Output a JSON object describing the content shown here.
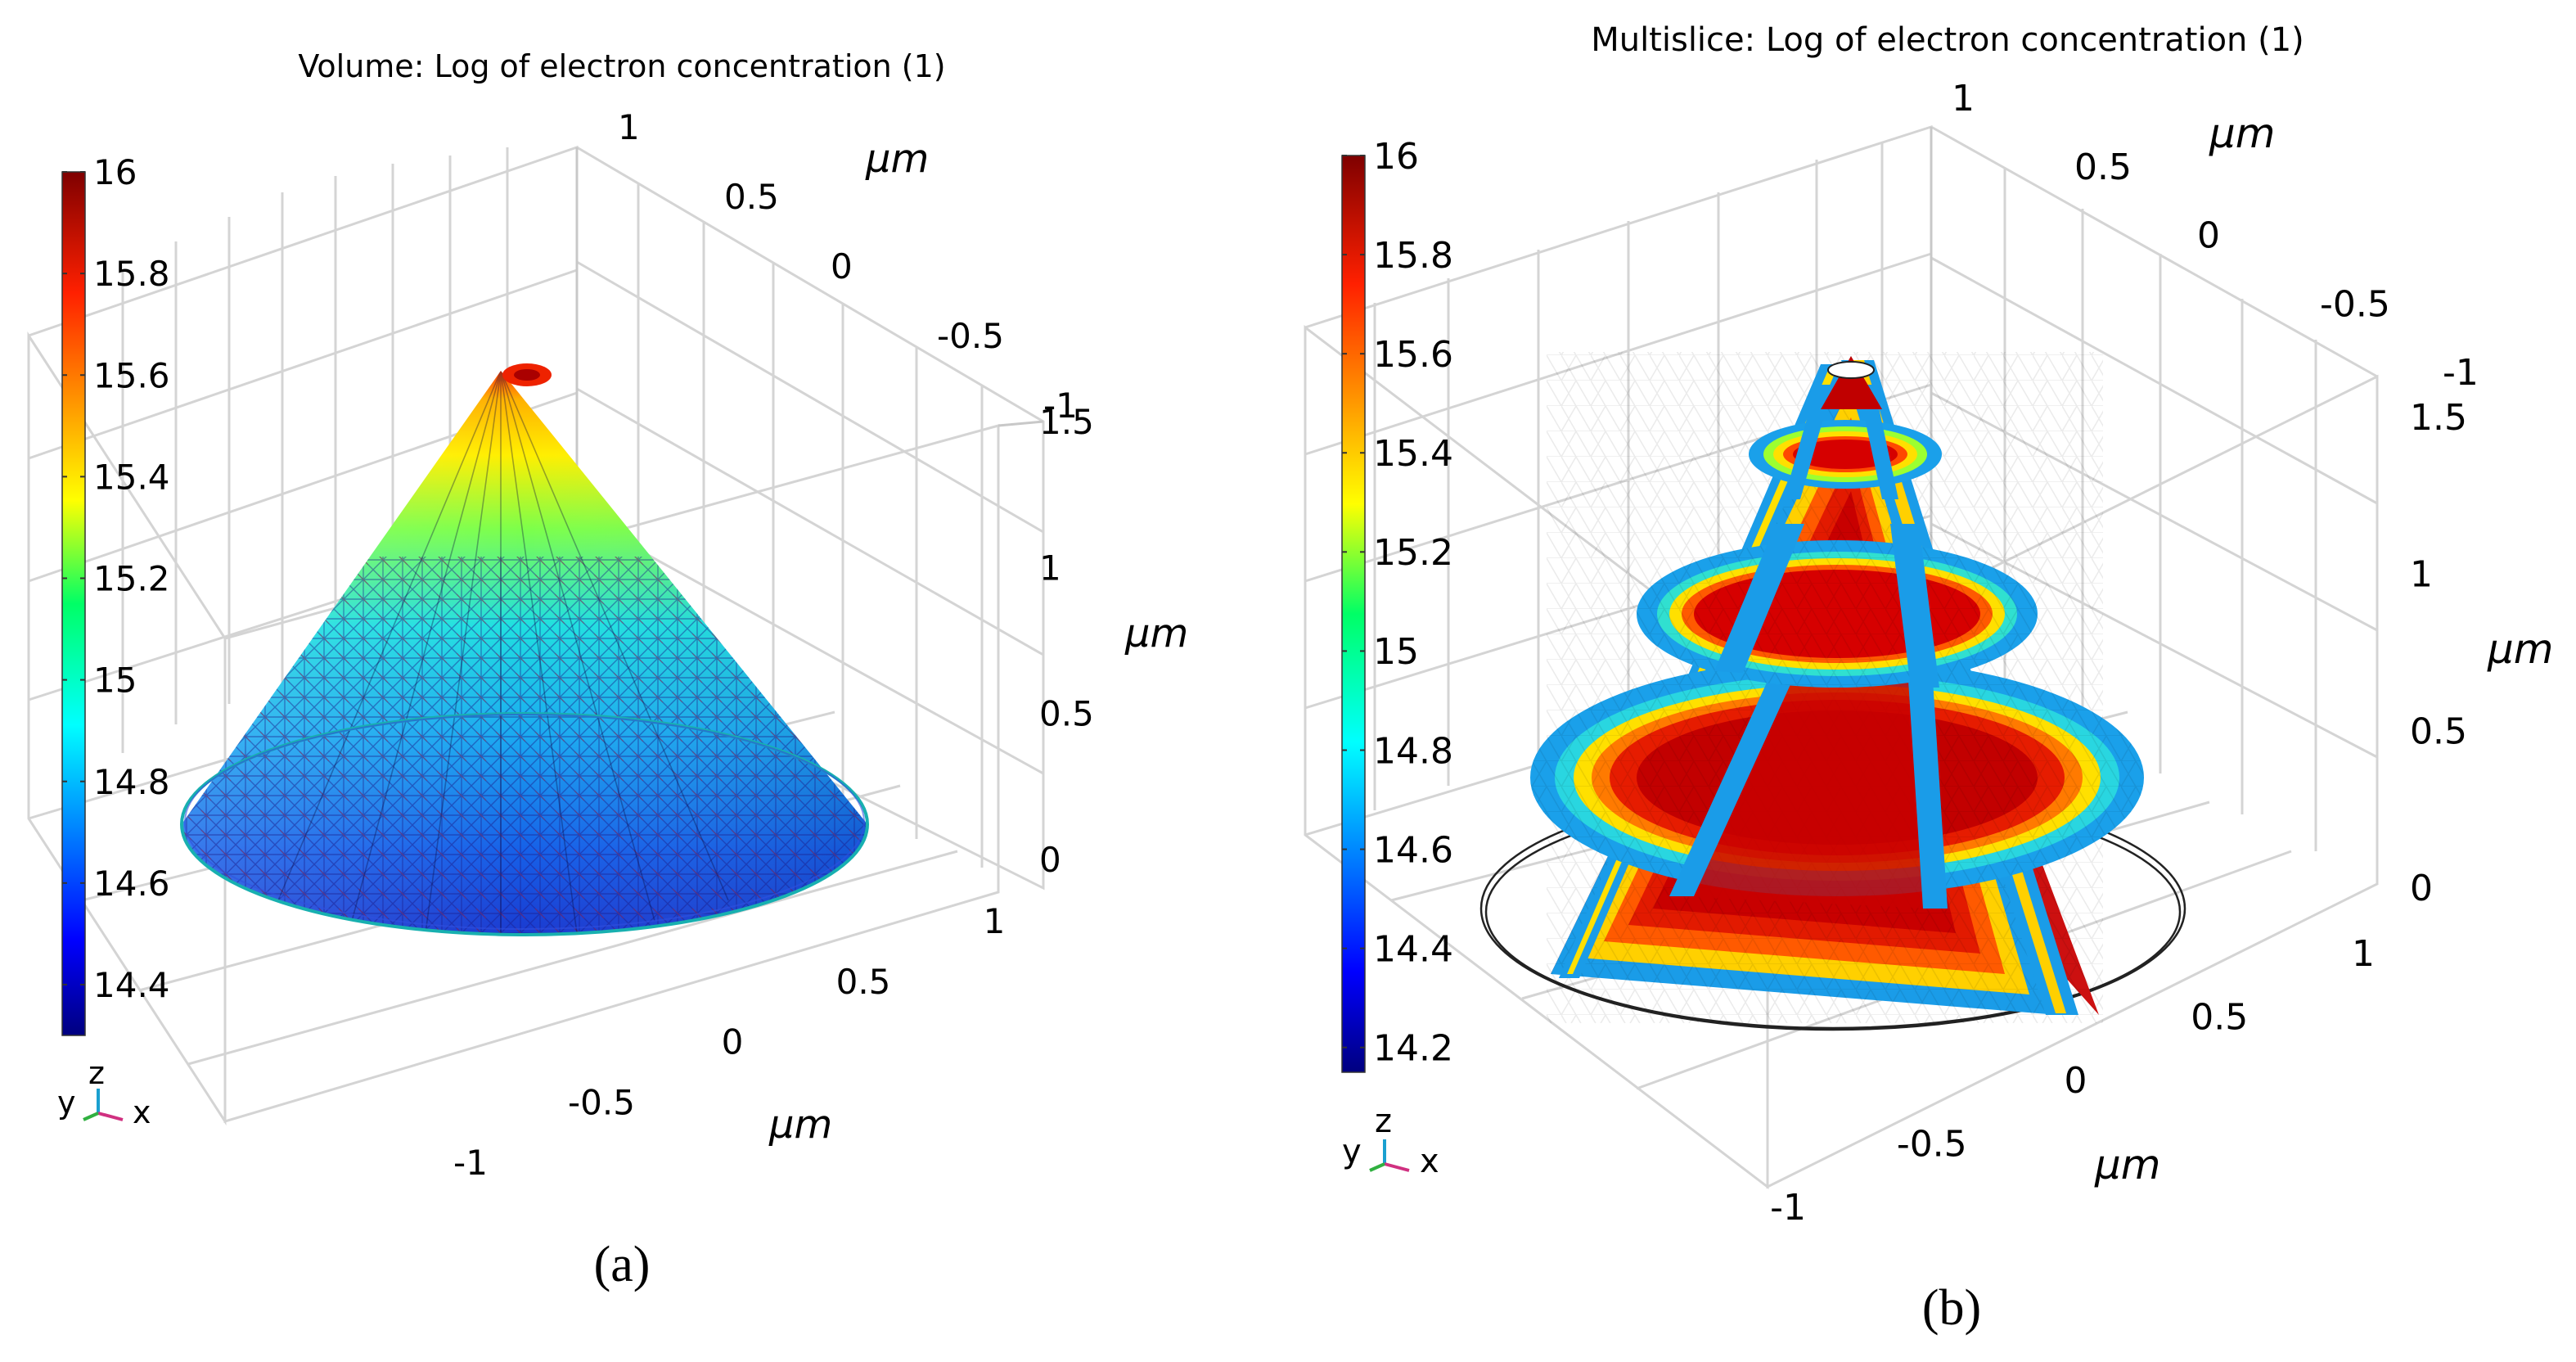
{
  "chart_data": [
    {
      "type": "other",
      "subtype": "3d-volume-plot",
      "title": "Volume: Log of electron concentration (1)",
      "caption": "(a)",
      "colorbar": {
        "min": 14.3,
        "max": 16.0,
        "ticks": [
          "16",
          "15.8",
          "15.6",
          "15.4",
          "15.2",
          "15",
          "14.8",
          "14.6",
          "14.4"
        ]
      },
      "axis_unit": "μm",
      "y_axis_ticks": [
        "1",
        "0.5",
        "0",
        "-0.5",
        "-1"
      ],
      "z_axis_ticks": [
        "1.5",
        "1",
        "0.5",
        "0"
      ],
      "x_axis_ticks": [
        "1",
        "0.5",
        "0",
        "-0.5",
        "-1"
      ],
      "triad": {
        "y": "y",
        "z": "z",
        "x": "x"
      }
    },
    {
      "type": "other",
      "subtype": "3d-multislice-plot",
      "title": "Multislice: Log of electron concentration (1)",
      "caption": "(b)",
      "colorbar": {
        "min": 14.15,
        "max": 16.0,
        "ticks": [
          "16",
          "15.8",
          "15.6",
          "15.4",
          "15.2",
          "15",
          "14.8",
          "14.6",
          "14.4",
          "14.2"
        ]
      },
      "axis_unit": "μm",
      "y_axis_ticks": [
        "1",
        "0.5",
        "0",
        "-0.5",
        "-1"
      ],
      "z_axis_ticks": [
        "1.5",
        "1",
        "0.5",
        "0"
      ],
      "x_axis_ticks": [
        "1",
        "0.5",
        "0",
        "-0.5",
        "-1"
      ],
      "triad": {
        "y": "y",
        "z": "z",
        "x": "x"
      }
    }
  ]
}
